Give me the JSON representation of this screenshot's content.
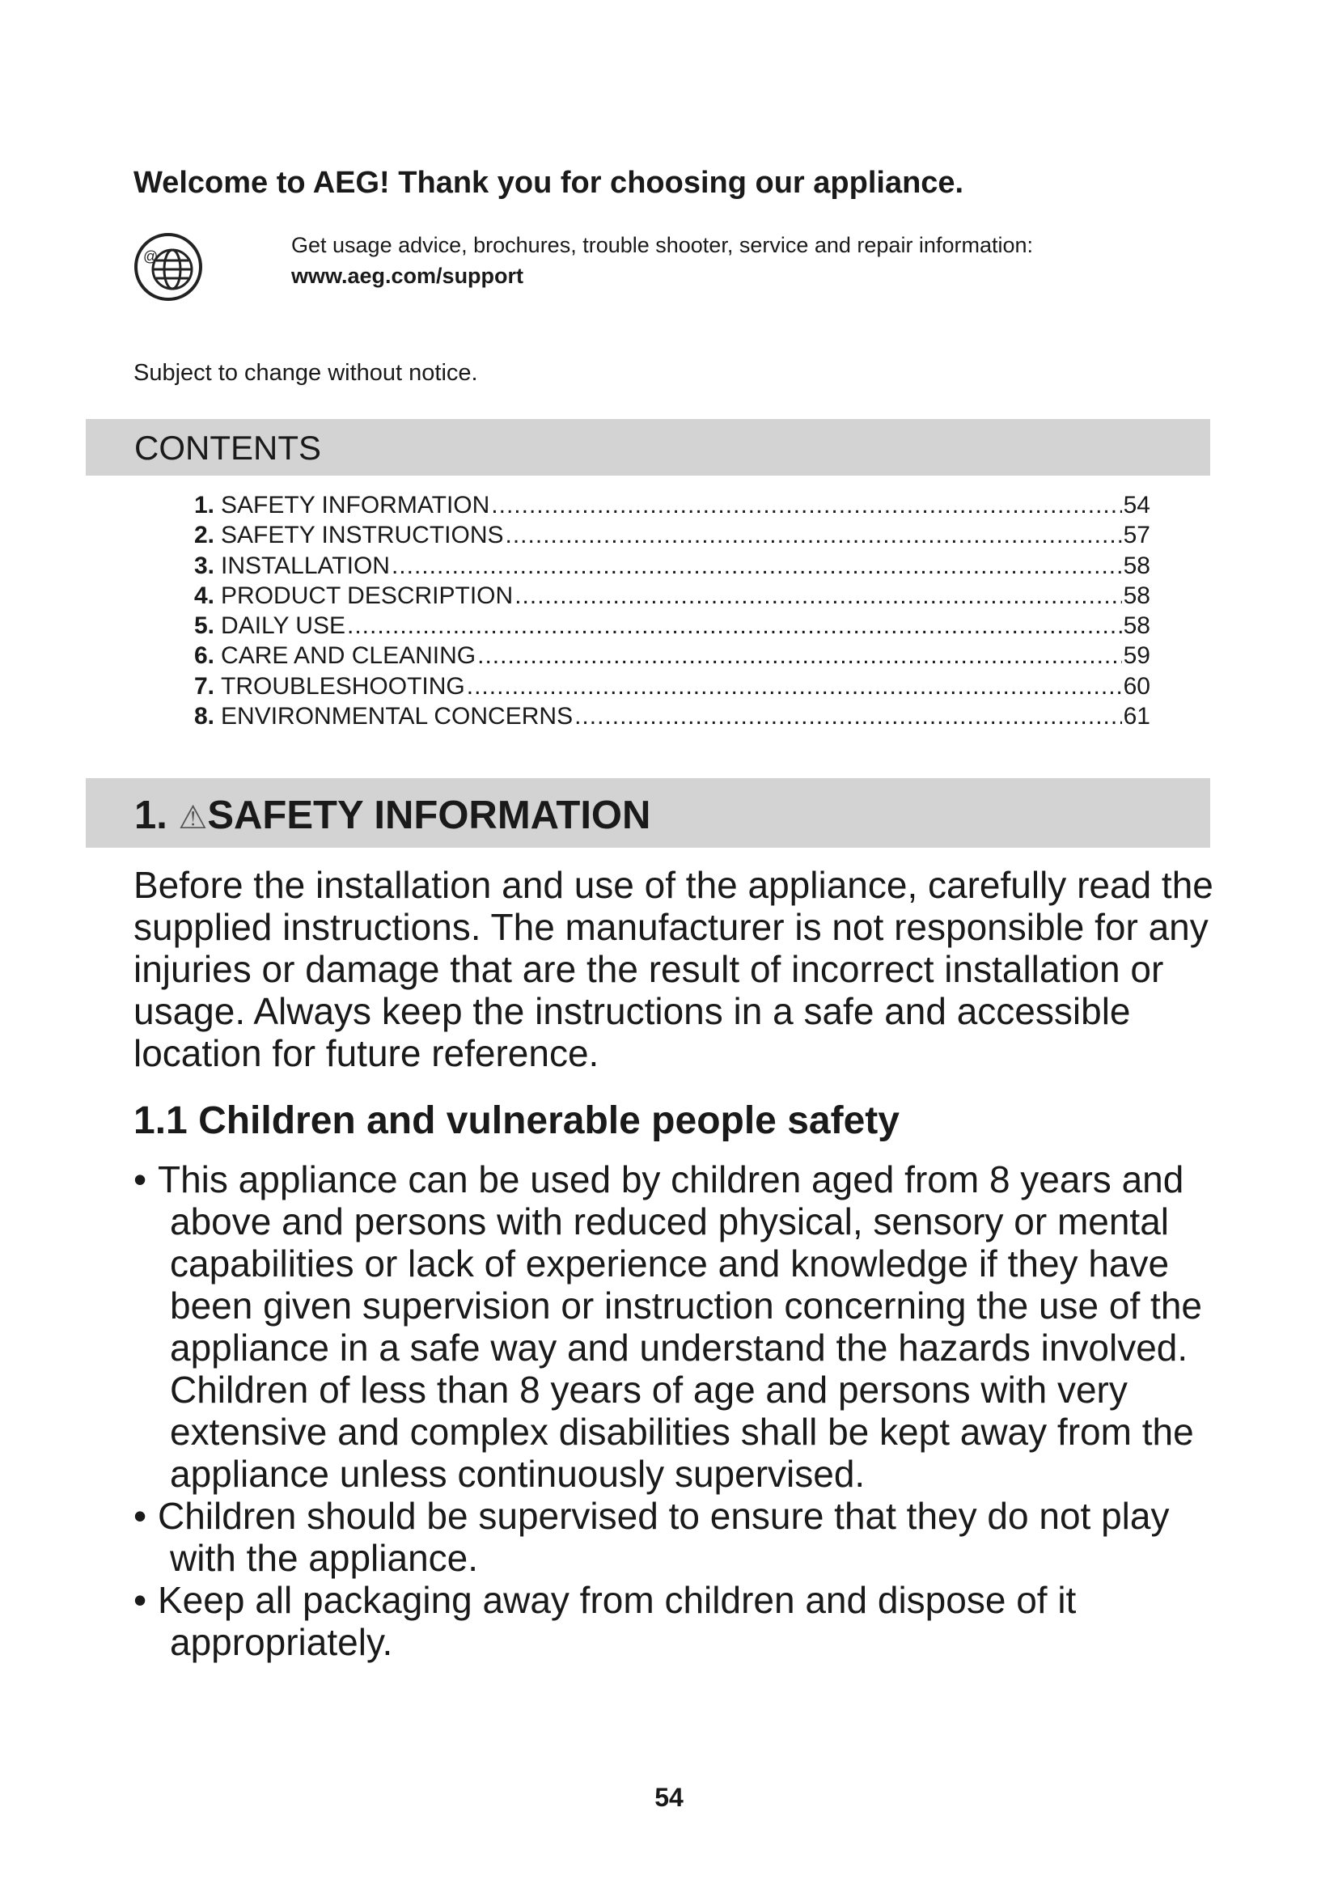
{
  "header": {
    "welcome": "Welcome to AEG! Thank you for choosing our appliance.",
    "support_text": "Get usage advice, brochures, trouble shooter, service and repair information:",
    "support_link": "www.aeg.com/support",
    "icon": "globe-at-icon",
    "notice": "Subject to change without notice."
  },
  "contents": {
    "title": "CONTENTS",
    "items": [
      {
        "num": "1.",
        "label": "SAFETY INFORMATION",
        "page": "54"
      },
      {
        "num": "2.",
        "label": "SAFETY INSTRUCTIONS",
        "page": "57"
      },
      {
        "num": "3.",
        "label": "INSTALLATION",
        "page": "58"
      },
      {
        "num": "4.",
        "label": "PRODUCT DESCRIPTION",
        "page": "58"
      },
      {
        "num": "5.",
        "label": "DAILY USE",
        "page": "58"
      },
      {
        "num": "6.",
        "label": "CARE AND CLEANING",
        "page": "59"
      },
      {
        "num": "7.",
        "label": "TROUBLESHOOTING",
        "page": "60"
      },
      {
        "num": "8.",
        "label": "ENVIRONMENTAL CONCERNS",
        "page": "61"
      }
    ]
  },
  "section": {
    "number": "1.",
    "warning_icon": "warning-triangle-icon",
    "title": "SAFETY INFORMATION",
    "intro": "Before the installation and use of the appliance, carefully read the supplied instructions. The manufacturer is not responsible for any injuries or damage that are the result of incorrect installation or usage. Always keep the instructions in a safe and accessible location for future reference.",
    "subsection_title": "1.1 Children and vulnerable people safety",
    "bullets": [
      "This appliance can be used by children aged from 8 years and above and persons with reduced physical, sensory or mental capabilities or lack of experience and knowledge if they have been given supervision or instruction concerning the use of the appliance in a safe way and understand the hazards involved. Children of less than 8 years of age and persons with very extensive and complex disabilities shall be kept away from the appliance unless continuously supervised.",
      "Children should be supervised to ensure that they do not play with the appliance.",
      "Keep all packaging away from children and dispose of it appropriately."
    ]
  },
  "footer": {
    "page_number": "54"
  },
  "colors": {
    "band": "#d3d3d3",
    "text": "#1a1a1a"
  }
}
